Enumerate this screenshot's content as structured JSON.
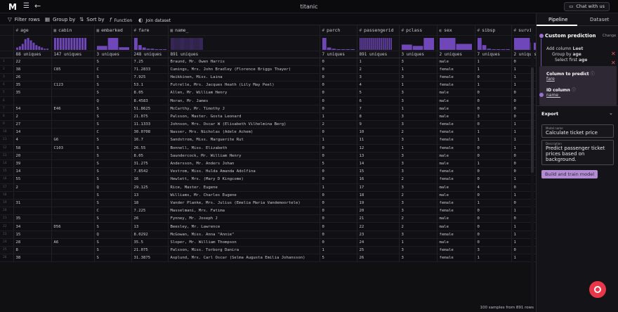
{
  "app": {
    "logo": "M",
    "title": "titanic",
    "chat_label": "Chat with us"
  },
  "toolbar": {
    "filter_rows": "Filter rows",
    "group_by": "Group by",
    "sort_by": "Sort by",
    "function": "Function",
    "join_dataset": "Join dataset"
  },
  "columns": [
    {
      "name": "age",
      "type_icon": "#",
      "uniques": "88 uniques"
    },
    {
      "name": "cabin",
      "type_icon": "▦",
      "uniques": "147 uniques"
    },
    {
      "name": "embarked",
      "type_icon": "▦",
      "uniques": "3 uniques"
    },
    {
      "name": "fare",
      "type_icon": "#",
      "uniques": "248 uniques"
    },
    {
      "name": "name_",
      "type_icon": "▦",
      "uniques": "891 uniques"
    },
    {
      "name": "parch",
      "type_icon": "#",
      "uniques": "7 uniques"
    },
    {
      "name": "passengerid",
      "type_icon": "#",
      "uniques": "891 uniques"
    },
    {
      "name": "pclass",
      "type_icon": "#",
      "uniques": "3 uniques"
    },
    {
      "name": "sex",
      "type_icon": "◐",
      "uniques": "2 uniques"
    },
    {
      "name": "sibsp",
      "type_icon": "#",
      "uniques": "7 uniques"
    },
    {
      "name": "survi",
      "type_icon": "#",
      "uniques": "2 uniques"
    }
  ],
  "rows": [
    [
      "1",
      "22",
      "",
      "S",
      "7.25",
      "Braund, Mr. Owen Harris",
      "0",
      "1",
      "3",
      "male",
      "1",
      "0"
    ],
    [
      "2",
      "38",
      "C85",
      "C",
      "71.2833",
      "Cumings, Mrs. John Bradley (Florence Briggs Thayer)",
      "0",
      "2",
      "1",
      "female",
      "1",
      "1"
    ],
    [
      "3",
      "26",
      "",
      "S",
      "7.925",
      "Heikkinen, Miss. Laina",
      "0",
      "3",
      "3",
      "female",
      "0",
      "1"
    ],
    [
      "4",
      "35",
      "C123",
      "S",
      "53.1",
      "Futrelle, Mrs. Jacques Heath (Lily May Peel)",
      "0",
      "4",
      "1",
      "female",
      "1",
      "1"
    ],
    [
      "5",
      "35",
      "",
      "S",
      "8.05",
      "Allen, Mr. William Henry",
      "0",
      "5",
      "3",
      "male",
      "0",
      "0"
    ],
    [
      "6",
      "",
      "",
      "Q",
      "8.4583",
      "Moran, Mr. James",
      "0",
      "6",
      "3",
      "male",
      "0",
      "0"
    ],
    [
      "7",
      "54",
      "E46",
      "S",
      "51.8625",
      "McCarthy, Mr. Timothy J",
      "0",
      "7",
      "1",
      "male",
      "0",
      "0"
    ],
    [
      "8",
      "2",
      "",
      "S",
      "21.075",
      "Palsson, Master. Gosta Leonard",
      "1",
      "8",
      "3",
      "male",
      "3",
      "0"
    ],
    [
      "9",
      "27",
      "",
      "S",
      "11.1333",
      "Johnson, Mrs. Oscar W (Elisabeth Vilhelmina Berg)",
      "2",
      "9",
      "3",
      "female",
      "0",
      "1"
    ],
    [
      "10",
      "14",
      "",
      "C",
      "30.0708",
      "Nasser, Mrs. Nicholas (Adele Achem)",
      "0",
      "10",
      "2",
      "female",
      "1",
      "1"
    ],
    [
      "11",
      "4",
      "G6",
      "S",
      "16.7",
      "Sandstrom, Miss. Marguerite Rut",
      "1",
      "11",
      "3",
      "female",
      "1",
      "1"
    ],
    [
      "12",
      "58",
      "C103",
      "S",
      "26.55",
      "Bonnell, Miss. Elizabeth",
      "0",
      "12",
      "1",
      "female",
      "0",
      "1"
    ],
    [
      "13",
      "20",
      "",
      "S",
      "8.05",
      "Saundercock, Mr. William Henry",
      "0",
      "13",
      "3",
      "male",
      "0",
      "0"
    ],
    [
      "14",
      "39",
      "",
      "S",
      "31.275",
      "Andersson, Mr. Anders Johan",
      "5",
      "14",
      "3",
      "male",
      "1",
      "0"
    ],
    [
      "15",
      "14",
      "",
      "S",
      "7.8542",
      "Vestrom, Miss. Hulda Amanda Adolfina",
      "0",
      "15",
      "3",
      "female",
      "0",
      "0"
    ],
    [
      "16",
      "55",
      "",
      "S",
      "16",
      "Hewlett, Mrs. (Mary D Kingcome)",
      "0",
      "16",
      "2",
      "female",
      "0",
      "1"
    ],
    [
      "17",
      "2",
      "",
      "Q",
      "29.125",
      "Rice, Master. Eugene",
      "1",
      "17",
      "3",
      "male",
      "4",
      "0"
    ],
    [
      "18",
      "",
      "",
      "S",
      "13",
      "Williams, Mr. Charles Eugene",
      "0",
      "18",
      "2",
      "male",
      "0",
      "1"
    ],
    [
      "19",
      "31",
      "",
      "S",
      "18",
      "Vander Planke, Mrs. Julius (Emelia Maria Vandemoortele)",
      "0",
      "19",
      "3",
      "female",
      "1",
      "0"
    ],
    [
      "20",
      "",
      "",
      "C",
      "7.225",
      "Masselmani, Mrs. Fatima",
      "0",
      "20",
      "3",
      "female",
      "0",
      "1"
    ],
    [
      "21",
      "35",
      "",
      "S",
      "26",
      "Fynney, Mr. Joseph J",
      "0",
      "21",
      "2",
      "male",
      "0",
      "0"
    ],
    [
      "22",
      "34",
      "D56",
      "S",
      "13",
      "Beesley, Mr. Lawrence",
      "0",
      "22",
      "2",
      "male",
      "0",
      "1"
    ],
    [
      "23",
      "15",
      "",
      "Q",
      "8.0292",
      "McGowan, Miss. Anna \"Annie\"",
      "0",
      "23",
      "3",
      "female",
      "0",
      "1"
    ],
    [
      "24",
      "28",
      "A6",
      "S",
      "35.5",
      "Sloper, Mr. William Thompson",
      "0",
      "24",
      "1",
      "male",
      "0",
      "1"
    ],
    [
      "25",
      "8",
      "",
      "S",
      "21.075",
      "Palsson, Miss. Torborg Danira",
      "1",
      "25",
      "3",
      "female",
      "3",
      "0"
    ],
    [
      "26",
      "38",
      "",
      "S",
      "31.3875",
      "Asplund, Mrs. Carl Oscar (Selma Augusta Emilia Johansson)",
      "5",
      "26",
      "3",
      "female",
      "1",
      "1"
    ]
  ],
  "footer": "100 samples from 891 rows",
  "histograms": {
    "age": [
      2,
      3,
      5,
      9,
      10,
      8,
      6,
      4,
      3,
      2,
      1,
      1
    ],
    "cabin": [
      1,
      1,
      1,
      1,
      1,
      1,
      1,
      1,
      1,
      1,
      1,
      1
    ],
    "embarked": [
      3,
      9,
      2
    ],
    "fare": [
      10,
      4,
      2,
      1,
      1,
      0.5,
      0.5,
      0.3
    ],
    "name_": [
      1,
      1,
      1,
      1,
      1,
      1,
      1,
      1,
      1,
      1,
      1,
      1,
      1,
      1,
      1,
      1,
      1,
      1,
      1,
      1,
      1,
      1,
      1,
      1,
      1,
      1,
      1,
      1,
      1,
      1,
      1,
      1,
      1,
      1,
      1,
      1,
      1,
      1,
      1,
      1,
      1,
      1,
      1,
      1,
      1,
      1,
      1,
      1,
      1,
      1
    ],
    "parch": [
      10,
      2,
      1,
      0.3,
      0.3,
      0.2,
      0.2
    ],
    "passengerid": [
      1,
      1,
      1,
      1,
      1,
      1,
      1,
      1,
      1,
      1,
      1,
      1,
      1,
      1,
      1,
      1,
      1,
      1,
      1,
      1,
      1,
      1,
      1,
      1,
      1,
      1,
      1,
      1,
      1,
      1
    ],
    "pclass": [
      4,
      3,
      9
    ],
    "sex": [
      10,
      5
    ],
    "sibsp": [
      10,
      4,
      1,
      0.4,
      0.4,
      0.2,
      0.2
    ],
    "survi": [
      10,
      6
    ]
  },
  "panel": {
    "tab_pipeline": "Pipeline",
    "tab_dataset": "Dataset",
    "custom_prediction": "Custom prediction",
    "change": "Change",
    "add_column": "Add column ",
    "add_column_name": "Leet",
    "group_by_label": "Group by ",
    "group_by_value": "age",
    "select_first_label": "Select first ",
    "select_first_value": "age",
    "column_to_predict": "Column to predict",
    "column_to_predict_value": "fare",
    "id_column": "ID column",
    "id_column_value": "name_",
    "export": "Export",
    "model_name_label": "Model name",
    "model_name_value": "Calculate ticket price",
    "description_label": "Description",
    "description_value": "Predict passenger ticket prices based on background.",
    "build_button": "Build and train model"
  },
  "colors": {
    "accent": "#8b5fd1",
    "bar": "#6f47b8",
    "fab": "#e9374a"
  }
}
